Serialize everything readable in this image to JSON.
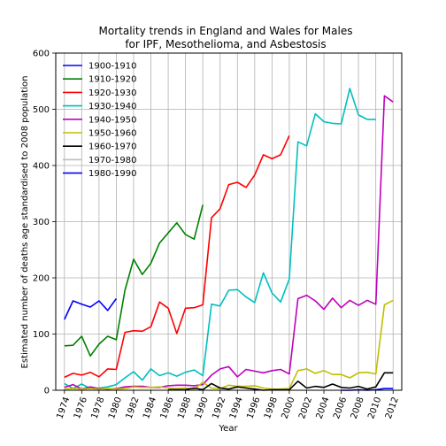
{
  "chart_data": {
    "type": "line",
    "title": [
      "Mortality trends in England and Wales for Males",
      "for IPF, Mesothelioma, and Asbestosis"
    ],
    "xlabel": "Year",
    "ylabel": "Estimated number of deaths age standardised to 2008 population",
    "xlim": [
      1973,
      2013
    ],
    "ylim": [
      0,
      600
    ],
    "x_ticks": [
      1974,
      1976,
      1978,
      1980,
      1982,
      1984,
      1986,
      1988,
      1990,
      1992,
      1994,
      1996,
      1998,
      2000,
      2002,
      2004,
      2006,
      2008,
      2010,
      2012
    ],
    "y_ticks": [
      0,
      100,
      200,
      300,
      400,
      500,
      600
    ],
    "grid": true,
    "legend_position": "top-left",
    "series": [
      {
        "name": "1900-1910",
        "color": "#0000ff",
        "x": [
          1974,
          1975,
          1976,
          1977,
          1978,
          1979,
          1980
        ],
        "y": [
          126,
          159,
          153,
          148,
          159,
          142,
          163
        ]
      },
      {
        "name": "1910-1920",
        "color": "#008000",
        "x": [
          1974,
          1975,
          1976,
          1977,
          1978,
          1979,
          1980,
          1981,
          1982,
          1983,
          1984,
          1985,
          1986,
          1987,
          1988,
          1989,
          1990
        ],
        "y": [
          79,
          80,
          96,
          61,
          82,
          96,
          90,
          178,
          233,
          206,
          226,
          262,
          280,
          298,
          277,
          269,
          330
        ]
      },
      {
        "name": "1920-1930",
        "color": "#ff0000",
        "x": [
          1974,
          1975,
          1976,
          1977,
          1978,
          1979,
          1980,
          1981,
          1982,
          1983,
          1984,
          1985,
          1986,
          1987,
          1988,
          1989,
          1990,
          1991,
          1992,
          1993,
          1994,
          1995,
          1996,
          1997,
          1998,
          1999,
          2000
        ],
        "y": [
          23,
          30,
          27,
          32,
          24,
          38,
          37,
          103,
          106,
          105,
          113,
          157,
          146,
          101,
          146,
          147,
          152,
          307,
          323,
          366,
          370,
          361,
          383,
          419,
          412,
          419,
          453
        ]
      },
      {
        "name": "1930-1940",
        "color": "#00bfbf",
        "x": [
          1974,
          1975,
          1976,
          1977,
          1978,
          1979,
          1980,
          1981,
          1982,
          1983,
          1984,
          1985,
          1986,
          1987,
          1988,
          1989,
          1990,
          1991,
          1992,
          1993,
          1994,
          1995,
          1996,
          1997,
          1998,
          1999,
          2000,
          2001,
          2002,
          2003,
          2004,
          2005,
          2006,
          2007,
          2008,
          2009,
          2010
        ],
        "y": [
          12,
          3,
          11,
          3,
          4,
          6,
          10,
          22,
          33,
          18,
          38,
          26,
          31,
          25,
          32,
          36,
          26,
          153,
          150,
          178,
          179,
          166,
          156,
          209,
          173,
          157,
          198,
          442,
          435,
          492,
          478,
          475,
          474,
          537,
          490,
          482,
          482
        ]
      },
      {
        "name": "1940-1950",
        "color": "#bf00bf",
        "x": [
          1974,
          1975,
          1976,
          1977,
          1978,
          1979,
          1980,
          1981,
          1982,
          1983,
          1984,
          1985,
          1986,
          1987,
          1988,
          1989,
          1990,
          1991,
          1992,
          1993,
          1994,
          1995,
          1996,
          1997,
          1998,
          1999,
          2000,
          2001,
          2002,
          2003,
          2004,
          2005,
          2006,
          2007,
          2008,
          2009,
          2010,
          2011,
          2012
        ],
        "y": [
          5,
          10,
          2,
          6,
          3,
          2,
          3,
          6,
          7,
          7,
          5,
          5,
          8,
          9,
          9,
          8,
          10,
          27,
          38,
          42,
          24,
          37,
          34,
          31,
          35,
          37,
          29,
          163,
          169,
          159,
          144,
          164,
          147,
          160,
          151,
          160,
          153,
          524,
          513
        ]
      },
      {
        "name": "1950-1960",
        "color": "#bfbf00",
        "x": [
          1974,
          1975,
          1976,
          1977,
          1978,
          1979,
          1980,
          1981,
          1982,
          1983,
          1984,
          1985,
          1986,
          1987,
          1988,
          1989,
          1990,
          1991,
          1992,
          1993,
          1994,
          1995,
          1996,
          1997,
          1998,
          1999,
          2000,
          2001,
          2002,
          2003,
          2004,
          2005,
          2006,
          2007,
          2008,
          2009,
          2010,
          2011,
          2012
        ],
        "y": [
          2,
          3,
          2,
          3,
          2,
          3,
          2,
          3,
          6,
          5,
          5,
          6,
          4,
          3,
          4,
          2,
          14,
          4,
          3,
          9,
          7,
          7,
          8,
          4,
          2,
          2,
          3,
          35,
          38,
          30,
          35,
          28,
          28,
          22,
          31,
          32,
          29,
          152,
          160
        ]
      },
      {
        "name": "1960-1970",
        "color": "#000000",
        "x": [
          1986,
          1987,
          1988,
          1989,
          1990,
          1991,
          1992,
          1993,
          1994,
          1995,
          1996,
          1997,
          1998,
          1999,
          2000,
          2001,
          2002,
          2003,
          2004,
          2005,
          2006,
          2007,
          2008,
          2009,
          2010,
          2011,
          2012
        ],
        "y": [
          1,
          1,
          1,
          4,
          1,
          12,
          4,
          2,
          6,
          4,
          2,
          0,
          1,
          1,
          1,
          16,
          4,
          7,
          5,
          11,
          5,
          4,
          7,
          2,
          6,
          31,
          31
        ]
      },
      {
        "name": "1970-1980",
        "color": "#bfbfbf",
        "x": [],
        "y": []
      },
      {
        "name": "1980-1990",
        "color": "#0000ff",
        "x": [
          2006,
          2007,
          2008,
          2009,
          2010,
          2011,
          2012
        ],
        "y": [
          0,
          0,
          1,
          0,
          1,
          3,
          3
        ]
      }
    ]
  }
}
